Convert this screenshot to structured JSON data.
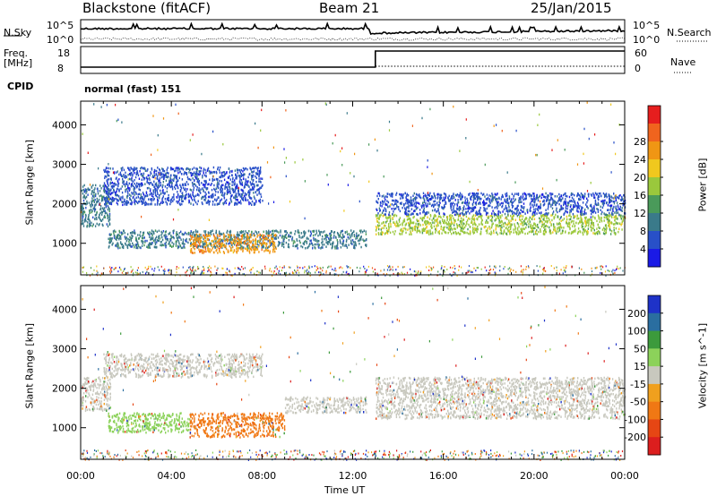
{
  "header": {
    "station": "Blackstone (fitACF)",
    "beam": "Beam 21",
    "date": "25/Jan/2015"
  },
  "top_panels": {
    "nsky_label": "N.Sky",
    "nsearch_label": "N.Search",
    "nsky_ticks": [
      "10^5",
      "10^0"
    ],
    "nsearch_ticks": [
      "10^5",
      "10^0"
    ],
    "freq_label_line1": "Freq.",
    "freq_label_line2": "[MHz]",
    "freq_ticks": [
      "18",
      "8"
    ],
    "nave_label": "Nave",
    "nave_ticks": [
      "60",
      "0"
    ],
    "cpid_label": "CPID",
    "cpid_value": "normal (fast) 151"
  },
  "chart_data": [
    {
      "type": "heatmap",
      "name": "power",
      "ylabel": "Slant Range [km]",
      "y_ticks": [
        "1000",
        "2000",
        "3000",
        "4000"
      ],
      "y_tick_values": [
        1000,
        2000,
        3000,
        4000
      ],
      "ylim": [
        200,
        4600
      ],
      "colorbar_label": "Power [dB]",
      "colorbar_ticks": [
        "4",
        "8",
        "12",
        "16",
        "20",
        "24",
        "28"
      ],
      "colorbar_colors": [
        "#1a1ae6",
        "#2850c8",
        "#3a7a8a",
        "#4a9a5a",
        "#9ac83c",
        "#f0c81e",
        "#f09614",
        "#f0641e",
        "#e61e1e"
      ],
      "bands": [
        {
          "x_start": 0.0,
          "x_end": 1.3,
          "y_low": 1450,
          "y_high": 2500,
          "level": 10
        },
        {
          "x_start": 1.2,
          "x_end": 12.6,
          "y_low": 900,
          "y_high": 1350,
          "level": 9
        },
        {
          "x_start": 4.8,
          "x_end": 8.6,
          "y_low": 780,
          "y_high": 1250,
          "level": 27
        },
        {
          "x_start": 1.0,
          "x_end": 8.0,
          "y_low": 2000,
          "y_high": 2950,
          "level": 6
        },
        {
          "x_start": 13.0,
          "x_end": 24.0,
          "y_low": 1250,
          "y_high": 1750,
          "level": 16
        },
        {
          "x_start": 13.0,
          "x_end": 24.0,
          "y_low": 1750,
          "y_high": 2300,
          "level": 6
        }
      ]
    },
    {
      "type": "heatmap",
      "name": "velocity",
      "ylabel": "Slant Range [km]",
      "y_ticks": [
        "1000",
        "2000",
        "3000",
        "4000"
      ],
      "y_tick_values": [
        1000,
        2000,
        3000,
        4000
      ],
      "ylim": [
        200,
        4600
      ],
      "colorbar_label": "Velocity [m s^-1]",
      "colorbar_ticks": [
        "200",
        "100",
        "50",
        "15",
        "-15",
        "-50",
        "-100",
        "-200"
      ],
      "colorbar_colors": [
        "#1e32c8",
        "#2a6ea0",
        "#3c9a3c",
        "#8cd25a",
        "#c8c8be",
        "#f0a01e",
        "#f07814",
        "#e64614",
        "#dc1e1e"
      ],
      "bands": [
        {
          "x_start": 0.0,
          "x_end": 1.3,
          "y_low": 1450,
          "y_high": 2300,
          "level": 0
        },
        {
          "x_start": 1.2,
          "x_end": 4.8,
          "y_low": 900,
          "y_high": 1400,
          "level": 30
        },
        {
          "x_start": 4.8,
          "x_end": 9.0,
          "y_low": 780,
          "y_high": 1400,
          "level": -60
        },
        {
          "x_start": 9.0,
          "x_end": 12.6,
          "y_low": 1400,
          "y_high": 1800,
          "level": 0
        },
        {
          "x_start": 1.0,
          "x_end": 8.0,
          "y_low": 2300,
          "y_high": 2900,
          "level": 0
        },
        {
          "x_start": 13.0,
          "x_end": 24.0,
          "y_low": 1250,
          "y_high": 2300,
          "level": 0
        }
      ]
    }
  ],
  "time_axis": {
    "label": "Time UT",
    "ticks": [
      "00:00",
      "04:00",
      "08:00",
      "12:00",
      "16:00",
      "20:00",
      "00:00"
    ],
    "tick_hours": [
      0,
      4,
      8,
      12,
      16,
      20,
      24
    ]
  }
}
